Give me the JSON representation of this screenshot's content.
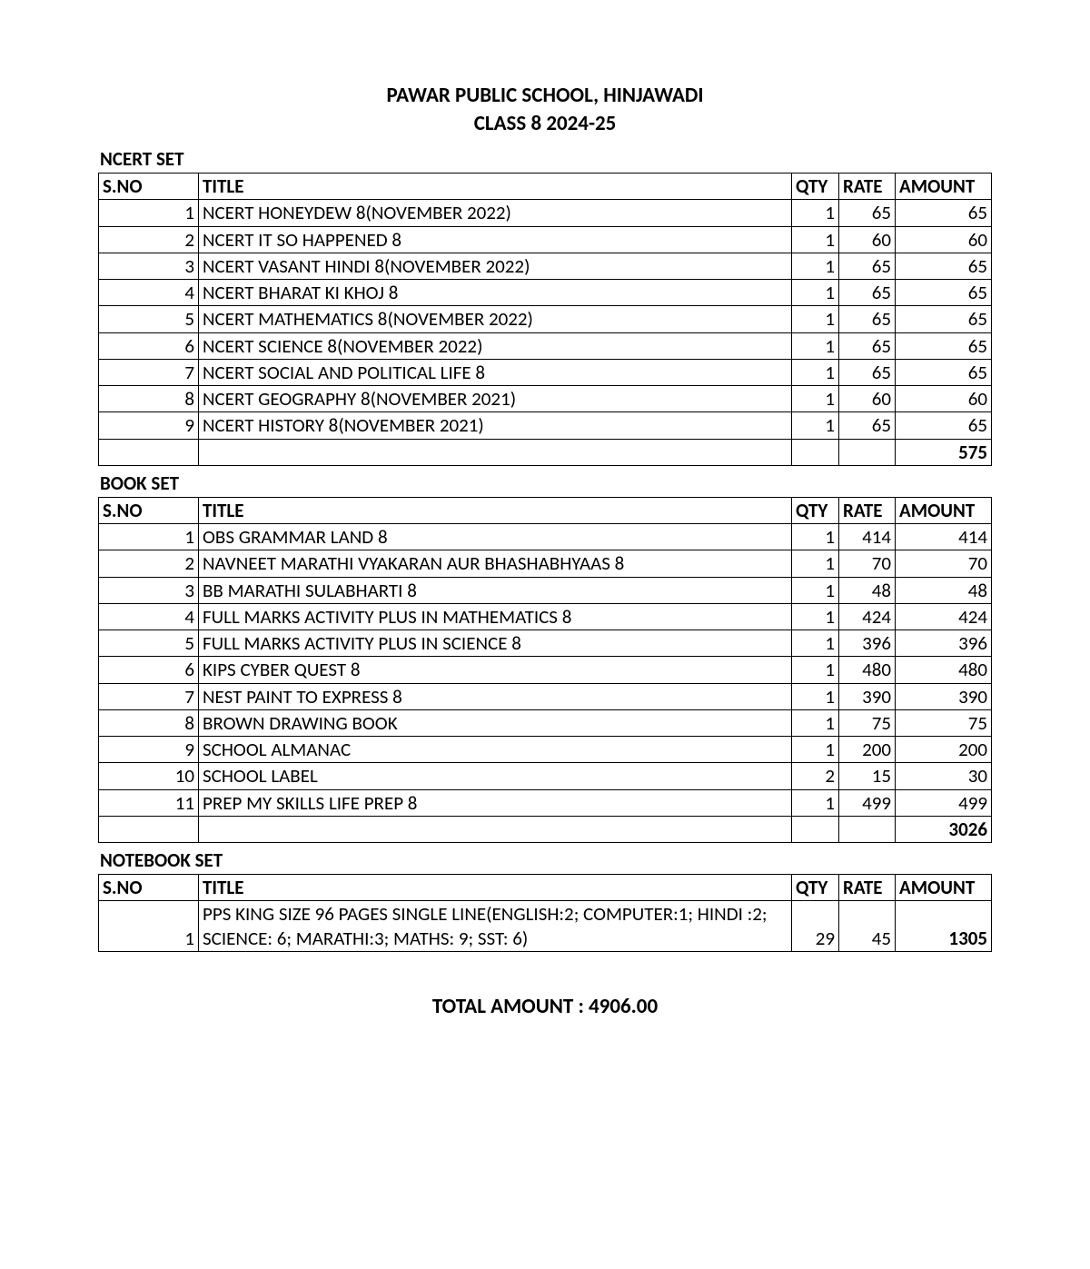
{
  "header": {
    "line1": "PAWAR PUBLIC SCHOOL, HINJAWADI",
    "line2": "CLASS 8 2024-25"
  },
  "columns": {
    "sno": "S.NO",
    "title": "TITLE",
    "qty": "QTY",
    "rate": "RATE",
    "amount": "AMOUNT"
  },
  "sections": [
    {
      "label": "NCERT SET",
      "rows": [
        {
          "sno": "1",
          "title": "NCERT HONEYDEW 8(NOVEMBER 2022)",
          "qty": "1",
          "rate": "65",
          "amount": "65"
        },
        {
          "sno": "2",
          "title": "NCERT IT SO HAPPENED 8",
          "qty": "1",
          "rate": "60",
          "amount": "60"
        },
        {
          "sno": "3",
          "title": "NCERT VASANT HINDI 8(NOVEMBER 2022)",
          "qty": "1",
          "rate": "65",
          "amount": "65"
        },
        {
          "sno": "4",
          "title": "NCERT BHARAT KI KHOJ 8",
          "qty": "1",
          "rate": "65",
          "amount": "65"
        },
        {
          "sno": "5",
          "title": "NCERT MATHEMATICS 8(NOVEMBER 2022)",
          "qty": "1",
          "rate": "65",
          "amount": "65"
        },
        {
          "sno": "6",
          "title": "NCERT SCIENCE 8(NOVEMBER 2022)",
          "qty": "1",
          "rate": "65",
          "amount": "65"
        },
        {
          "sno": "7",
          "title": "NCERT SOCIAL AND POLITICAL LIFE 8",
          "qty": "1",
          "rate": "65",
          "amount": "65"
        },
        {
          "sno": "8",
          "title": "NCERT GEOGRAPHY 8(NOVEMBER 2021)",
          "qty": "1",
          "rate": "60",
          "amount": "60"
        },
        {
          "sno": "9",
          "title": "NCERT HISTORY 8(NOVEMBER 2021)",
          "qty": "1",
          "rate": "65",
          "amount": "65"
        }
      ],
      "subtotal": "575"
    },
    {
      "label": "BOOK SET",
      "rows": [
        {
          "sno": "1",
          "title": "OBS GRAMMAR LAND 8",
          "qty": "1",
          "rate": "414",
          "amount": "414"
        },
        {
          "sno": "2",
          "title": "NAVNEET MARATHI VYAKARAN AUR BHASHABHYAAS 8",
          "qty": "1",
          "rate": "70",
          "amount": "70"
        },
        {
          "sno": "3",
          "title": "BB MARATHI SULABHARTI 8",
          "qty": "1",
          "rate": "48",
          "amount": "48"
        },
        {
          "sno": "4",
          "title": "FULL MARKS ACTIVITY PLUS IN MATHEMATICS 8",
          "qty": "1",
          "rate": "424",
          "amount": "424"
        },
        {
          "sno": "5",
          "title": "FULL MARKS ACTIVITY PLUS IN SCIENCE 8",
          "qty": "1",
          "rate": "396",
          "amount": "396"
        },
        {
          "sno": "6",
          "title": "KIPS CYBER QUEST 8",
          "qty": "1",
          "rate": "480",
          "amount": "480"
        },
        {
          "sno": "7",
          "title": "NEST PAINT TO EXPRESS 8",
          "qty": "1",
          "rate": "390",
          "amount": "390"
        },
        {
          "sno": "8",
          "title": "BROWN DRAWING BOOK",
          "qty": "1",
          "rate": "75",
          "amount": "75"
        },
        {
          "sno": "9",
          "title": "SCHOOL ALMANAC",
          "qty": "1",
          "rate": "200",
          "amount": "200"
        },
        {
          "sno": "10",
          "title": "SCHOOL LABEL",
          "qty": "2",
          "rate": "15",
          "amount": "30"
        },
        {
          "sno": "11",
          "title": "PREP MY SKILLS LIFE PREP 8",
          "qty": "1",
          "rate": "499",
          "amount": "499"
        }
      ],
      "subtotal": "3026"
    },
    {
      "label": "NOTEBOOK SET",
      "rows": [
        {
          "sno": "1",
          "title": "PPS KING SIZE 96 PAGES SINGLE LINE(ENGLISH:2; COMPUTER:1; HINDI :2; SCIENCE: 6; MARATHI:3; MATHS: 9; SST: 6)",
          "qty": "29",
          "rate": "45",
          "amount": "1305",
          "amount_bold": true
        }
      ]
    }
  ],
  "total_label": "TOTAL AMOUNT : 4906.00"
}
